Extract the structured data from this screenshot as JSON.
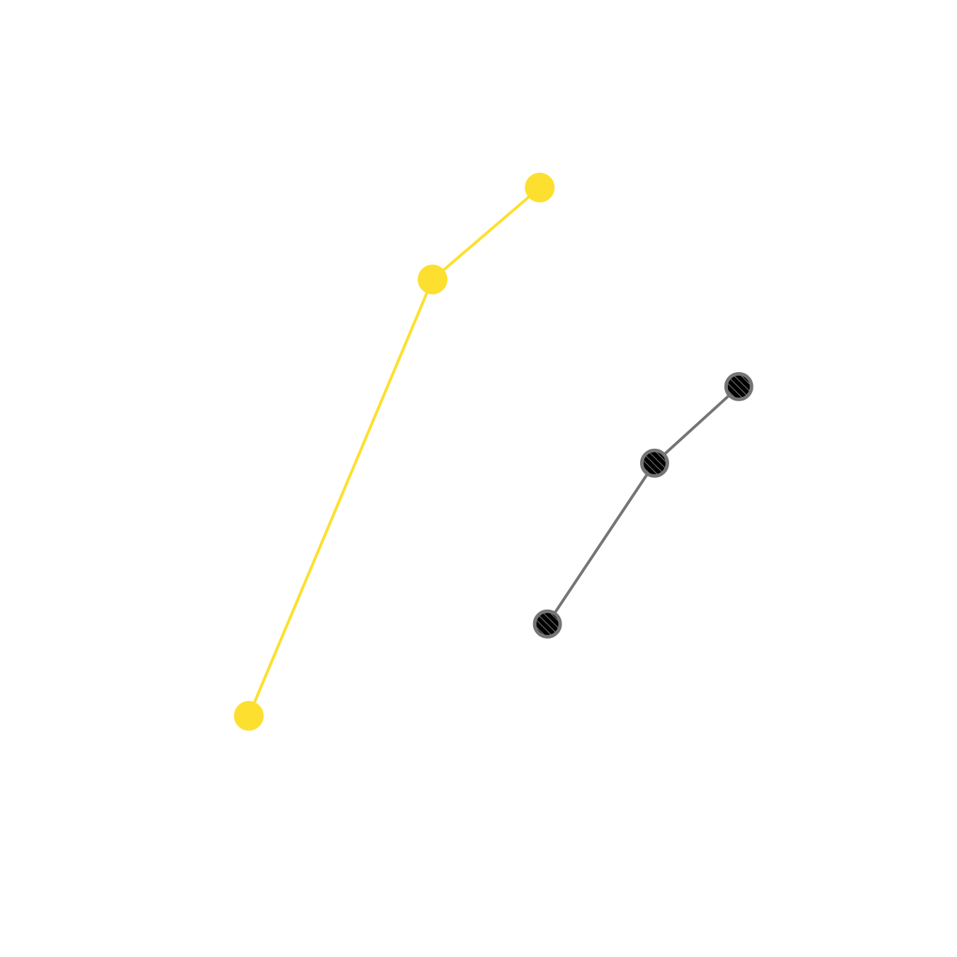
{
  "chart_data": {
    "type": "line",
    "title": "",
    "xlabel": "",
    "ylabel": "",
    "axes_visible": false,
    "grid": false,
    "legend": "none",
    "xlim": [
      0,
      10
    ],
    "ylim": [
      0,
      10
    ],
    "series": [
      {
        "color": "#FDE02F",
        "marker": "filled-circle",
        "points": [
          {
            "x": 2.0,
            "y": 1.9
          },
          {
            "x": 4.4,
            "y": 7.6
          },
          {
            "x": 5.8,
            "y": 8.8
          }
        ]
      },
      {
        "color": "#757575",
        "marker": "hatched-circle",
        "marker_fill": "#000000",
        "points": [
          {
            "x": 5.9,
            "y": 3.1
          },
          {
            "x": 7.3,
            "y": 5.2
          },
          {
            "x": 8.4,
            "y": 6.2
          }
        ]
      }
    ]
  }
}
